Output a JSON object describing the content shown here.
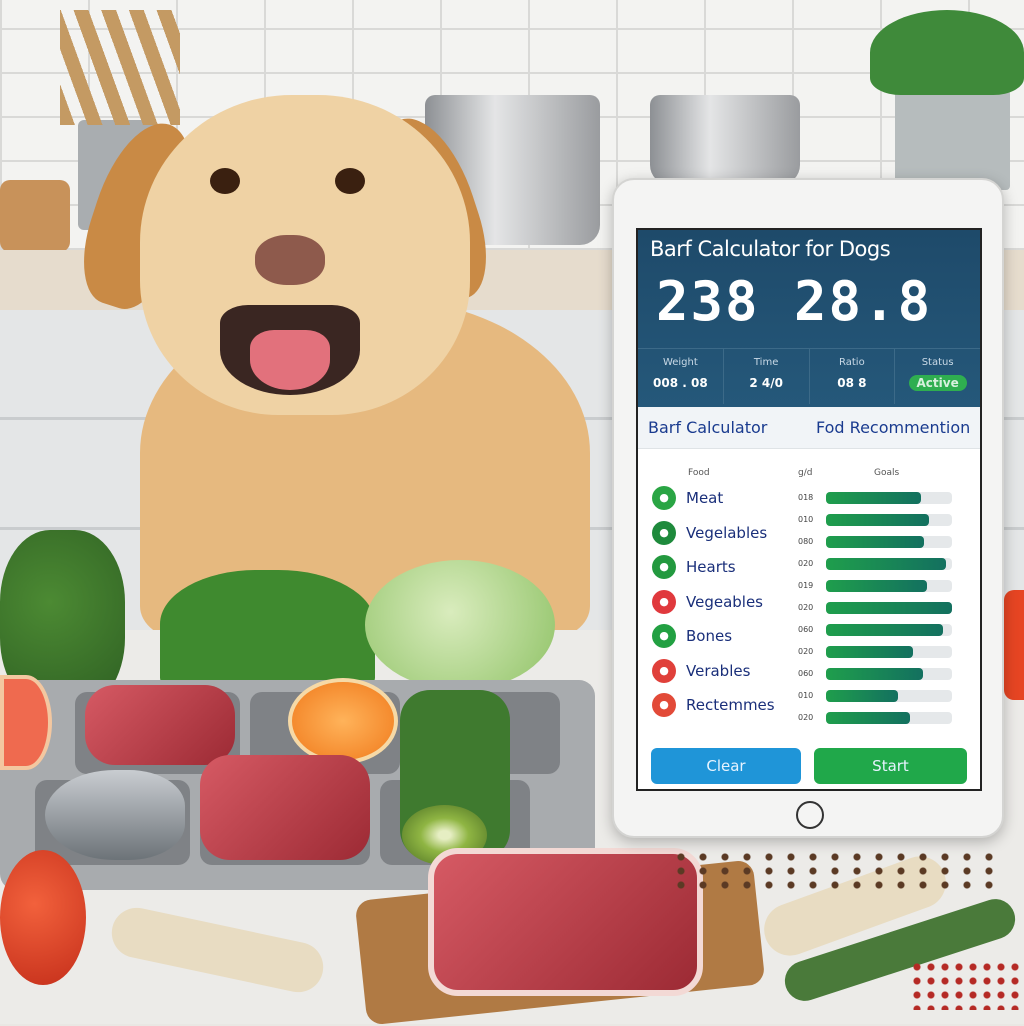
{
  "tablet": {
    "title": "Barf Calculator for Dogs",
    "display_digits": "238 28.8",
    "stats": [
      {
        "label": "Weight",
        "value": "008 . 08"
      },
      {
        "label": "Time",
        "value": "2 4/0"
      },
      {
        "label": "Ratio",
        "value": "08  8"
      },
      {
        "label": "Status",
        "value": "Active"
      }
    ],
    "subheader_left": "Barf Calculator",
    "subheader_right": "Fod Recommention",
    "column_headers": {
      "name": "Food",
      "amount": "g/d",
      "bar": "Goals"
    },
    "items": [
      {
        "label": "Meat",
        "color": "#2aa544"
      },
      {
        "label": "Vegelables",
        "color": "#1e8a3c"
      },
      {
        "label": "Hearts",
        "color": "#23993f"
      },
      {
        "label": "Vegeables",
        "color": "#e0393d"
      },
      {
        "label": "Bones",
        "color": "#22a042"
      },
      {
        "label": "Verables",
        "color": "#e0403a"
      },
      {
        "label": "Rectemmes",
        "color": "#e24a38"
      }
    ],
    "bars": [
      {
        "amount": "018",
        "fill": 0.75
      },
      {
        "amount": "010",
        "fill": 0.82
      },
      {
        "amount": "080",
        "fill": 0.78
      },
      {
        "amount": "020",
        "fill": 0.95
      },
      {
        "amount": "019",
        "fill": 0.8
      },
      {
        "amount": "020",
        "fill": 1.0
      },
      {
        "amount": "060",
        "fill": 0.93
      },
      {
        "amount": "020",
        "fill": 0.69
      },
      {
        "amount": "060",
        "fill": 0.77
      },
      {
        "amount": "010",
        "fill": 0.57
      },
      {
        "amount": "020",
        "fill": 0.67
      }
    ],
    "buttons": {
      "left": "Clear",
      "right": "Start",
      "left_color": "#1f95d8",
      "right_color": "#20a84a"
    }
  }
}
